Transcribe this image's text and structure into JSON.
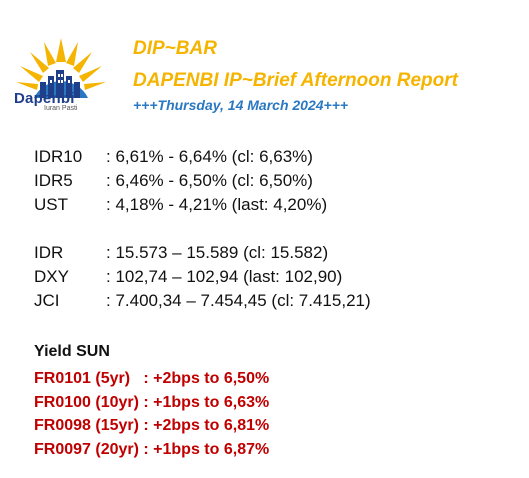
{
  "header": {
    "logo_word": "Dapenbi",
    "logo_tagline": "Iuran Pasti",
    "title": "DIP~BAR",
    "subtitle": "DAPENBI IP~Brief Afternoon Report",
    "date_line": "+++Thursday, 14 March 2024+++"
  },
  "colors": {
    "title": "#f5b400",
    "date": "#2a78c2",
    "logo_navy": "#1f3f8a",
    "yield": "#c00000"
  },
  "bonds": [
    {
      "label": "IDR10",
      "value": ": 6,61% - 6,64% (cl: 6,63%)"
    },
    {
      "label": "IDR5",
      "value": ": 6,46% - 6,50% (cl: 6,50%)"
    },
    {
      "label": "UST",
      "value": ": 4,18% - 4,21% (last: 4,20%)"
    }
  ],
  "markets": [
    {
      "label": "IDR",
      "value": ": 15.573 – 15.589 (cl: 15.582)"
    },
    {
      "label": "DXY",
      "value": ": 102,74 – 102,94 (last: 102,90)"
    },
    {
      "label": "JCI",
      "value": ": 7.400,34 – 7.454,45 (cl: 7.415,21)"
    }
  ],
  "yield": {
    "title": "Yield SUN",
    "items": [
      "FR0101 (5yr)   : +2bps to 6,50%",
      "FR0100 (10yr) : +1bps to 6,63%",
      "FR0098 (15yr) : +2bps to 6,81%",
      "FR0097 (20yr) : +1bps to 6,87%"
    ]
  }
}
